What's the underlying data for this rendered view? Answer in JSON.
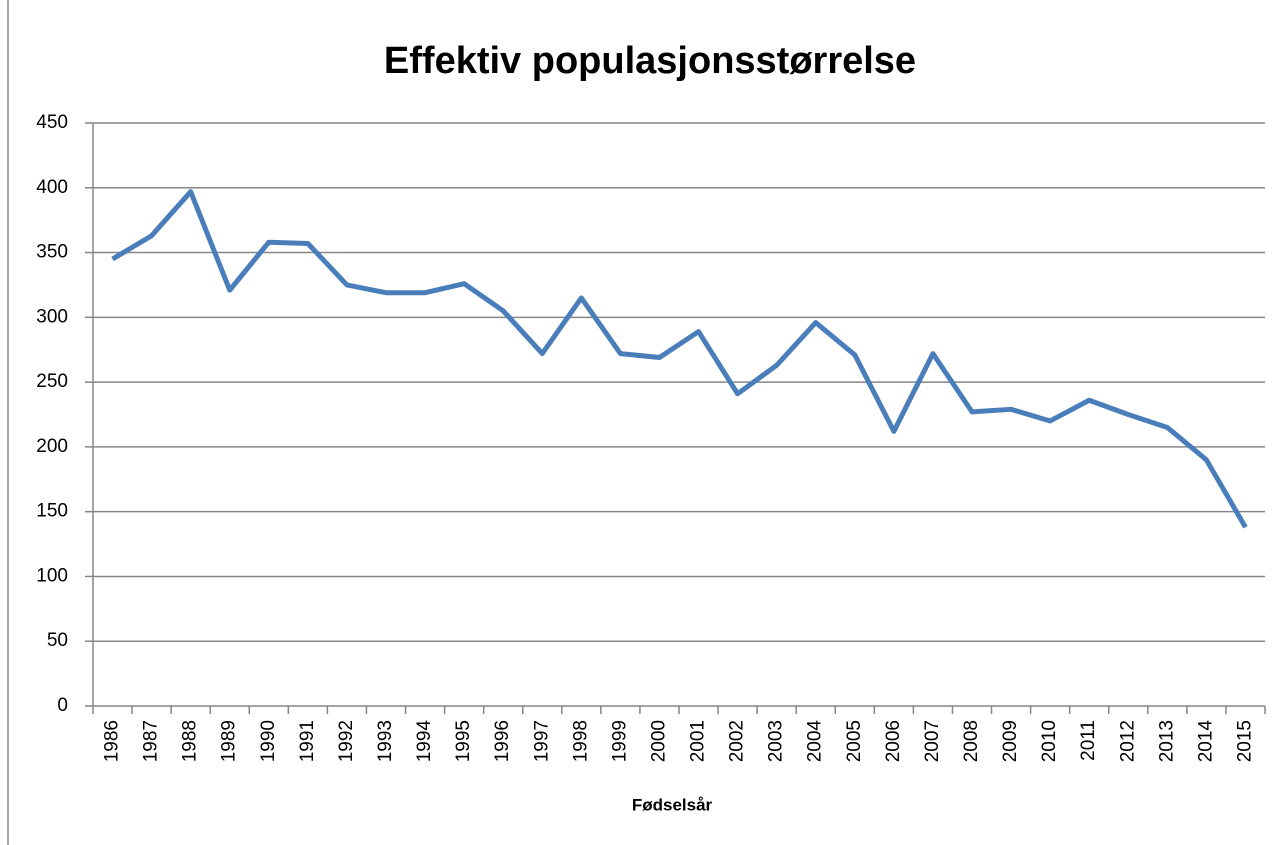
{
  "chart_data": {
    "type": "line",
    "title": "Effektiv populasjonsstørrelse",
    "x_label": "Fødselsår",
    "categories": [
      "1986",
      "1987",
      "1988",
      "1989",
      "1990",
      "1991",
      "1992",
      "1993",
      "1994",
      "1995",
      "1996",
      "1997",
      "1998",
      "1999",
      "2000",
      "2001",
      "2002",
      "2003",
      "2004",
      "2005",
      "2006",
      "2007",
      "2008",
      "2009",
      "2010",
      "2011",
      "2012",
      "2013",
      "2014",
      "2015"
    ],
    "series": [
      {
        "name": "Effektiv populasjonsstørrelse",
        "color": "#4a7ebb",
        "values": [
          345,
          363,
          397,
          321,
          358,
          357,
          325,
          319,
          319,
          326,
          305,
          272,
          315,
          272,
          269,
          289,
          241,
          263,
          296,
          271,
          212,
          272,
          227,
          229,
          220,
          236,
          225,
          215,
          190,
          138
        ]
      }
    ],
    "ylim": [
      0,
      450
    ],
    "yticks": [
      0,
      50,
      100,
      150,
      200,
      250,
      300,
      350,
      400,
      450
    ],
    "grid": true
  }
}
